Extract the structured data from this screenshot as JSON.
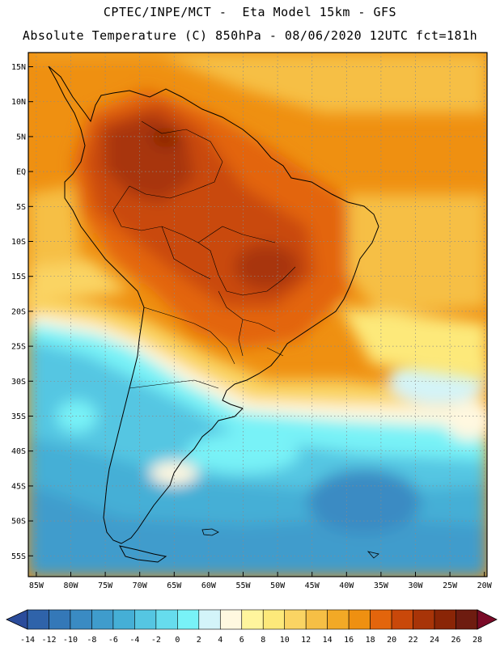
{
  "header": {
    "line1": "CPTEC/INPE/MCT -  Eta Model 15km - GFS",
    "line2": "Absolute Temperature (C) 850hPa - 08/06/2020 12UTC fct=181h"
  },
  "map": {
    "lat_labels": [
      "15N",
      "10N",
      "5N",
      "EQ",
      "5S",
      "10S",
      "15S",
      "20S",
      "25S",
      "30S",
      "35S",
      "40S",
      "45S",
      "50S",
      "55S"
    ],
    "lon_labels": [
      "85W",
      "80W",
      "75W",
      "70W",
      "65W",
      "60W",
      "55W",
      "50W",
      "45W",
      "40W",
      "35W",
      "30W",
      "25W",
      "20W"
    ]
  },
  "colorbar": {
    "tick_labels": [
      "-14",
      "-12",
      "-10",
      "-8",
      "-6",
      "-4",
      "-2",
      "0",
      "2",
      "4",
      "6",
      "8",
      "10",
      "12",
      "14",
      "16",
      "18",
      "20",
      "22",
      "24",
      "26",
      "28"
    ],
    "colors": [
      "#2b4c9b",
      "#2f63aa",
      "#3478b8",
      "#3a8bc3",
      "#3f9ccc",
      "#45afd6",
      "#55c6e2",
      "#66dced",
      "#78f2f7",
      "#d3f4f9",
      "#fff8e0",
      "#fff59d",
      "#fde97a",
      "#fad463",
      "#f6bf45",
      "#f2a926",
      "#ef9011",
      "#e3650c",
      "#c9480a",
      "#a83408",
      "#8a2506",
      "#6e1c10",
      "#7a0a27"
    ]
  }
}
